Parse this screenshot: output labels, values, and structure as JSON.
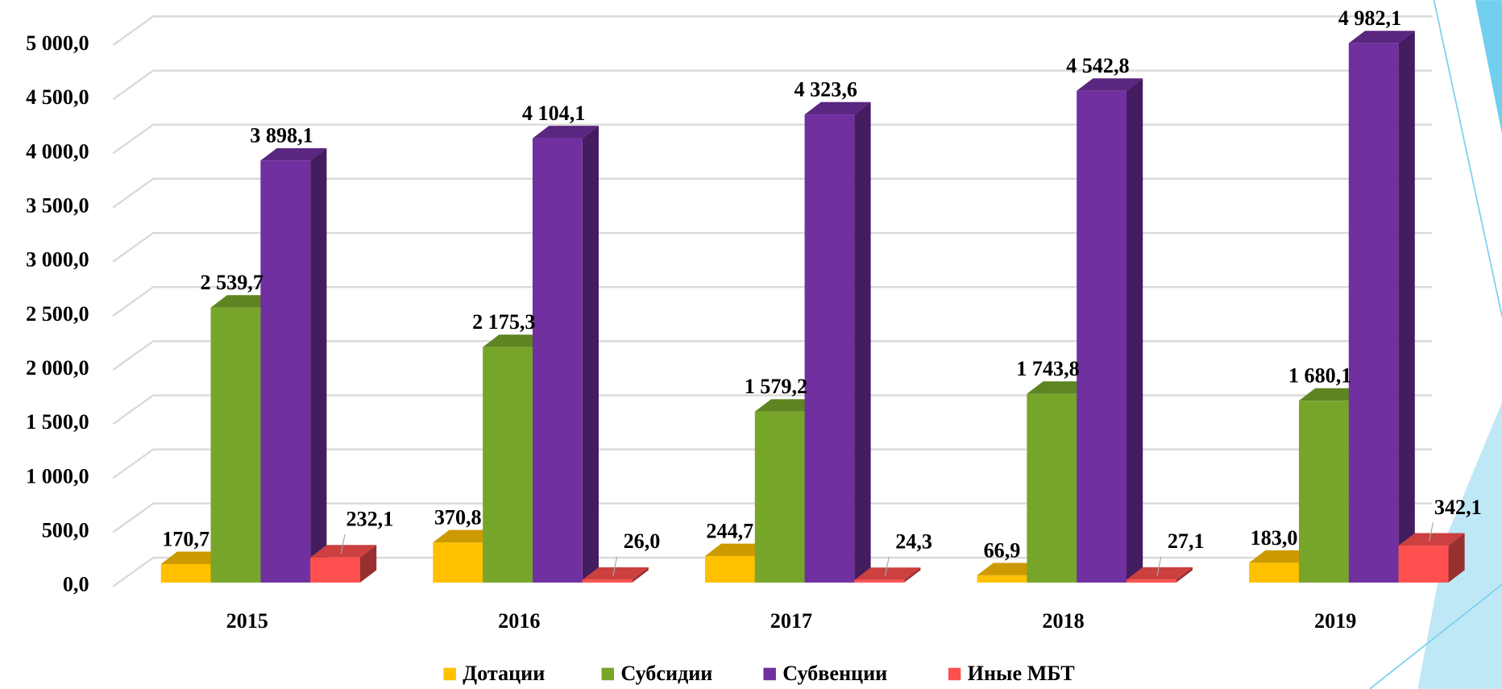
{
  "chart_data": {
    "type": "bar3d",
    "categories": [
      "2015",
      "2016",
      "2017",
      "2018",
      "2019"
    ],
    "series": [
      {
        "name": "Дотации",
        "color": "#FFC000",
        "values": [
          170.7,
          370.8,
          244.7,
          66.9,
          183.0
        ],
        "value_labels": [
          "170,7",
          "370,8",
          "244,7",
          "66,9",
          "183,0"
        ]
      },
      {
        "name": "Субсидии",
        "color": "#77A52A",
        "values": [
          2539.7,
          2175.3,
          1579.2,
          1743.8,
          1680.1
        ],
        "value_labels": [
          "2 539,7",
          "2 175,3",
          "1 579,2",
          "1 743,8",
          "1 680,1"
        ]
      },
      {
        "name": "Субвенции",
        "color": "#7030A0",
        "values": [
          3898.1,
          4104.1,
          4323.6,
          4542.8,
          4982.1
        ],
        "value_labels": [
          "3 898,1",
          "4 104,1",
          "4 323,6",
          "4 542,8",
          "4 982,1"
        ]
      },
      {
        "name": "Иные МБТ",
        "color": "#FF5050",
        "values": [
          232.1,
          26.0,
          24.3,
          27.1,
          342.1
        ],
        "value_labels": [
          "232,1",
          "26,0",
          "24,3",
          "27,1",
          "342,1"
        ]
      }
    ],
    "ylim": [
      0,
      5000
    ],
    "yticks": [
      {
        "value": 0,
        "label": "0,0"
      },
      {
        "value": 500,
        "label": "500,0"
      },
      {
        "value": 1000,
        "label": "1 000,0"
      },
      {
        "value": 1500,
        "label": "1 500,0"
      },
      {
        "value": 2000,
        "label": "2 000,0"
      },
      {
        "value": 2500,
        "label": "2 500,0"
      },
      {
        "value": 3000,
        "label": "3 000,0"
      },
      {
        "value": 3500,
        "label": "3 500,0"
      },
      {
        "value": 4000,
        "label": "4 000,0"
      },
      {
        "value": 4500,
        "label": "4 500,0"
      },
      {
        "value": 5000,
        "label": "5 000,0"
      }
    ],
    "grid": true,
    "legend": "bottom"
  }
}
